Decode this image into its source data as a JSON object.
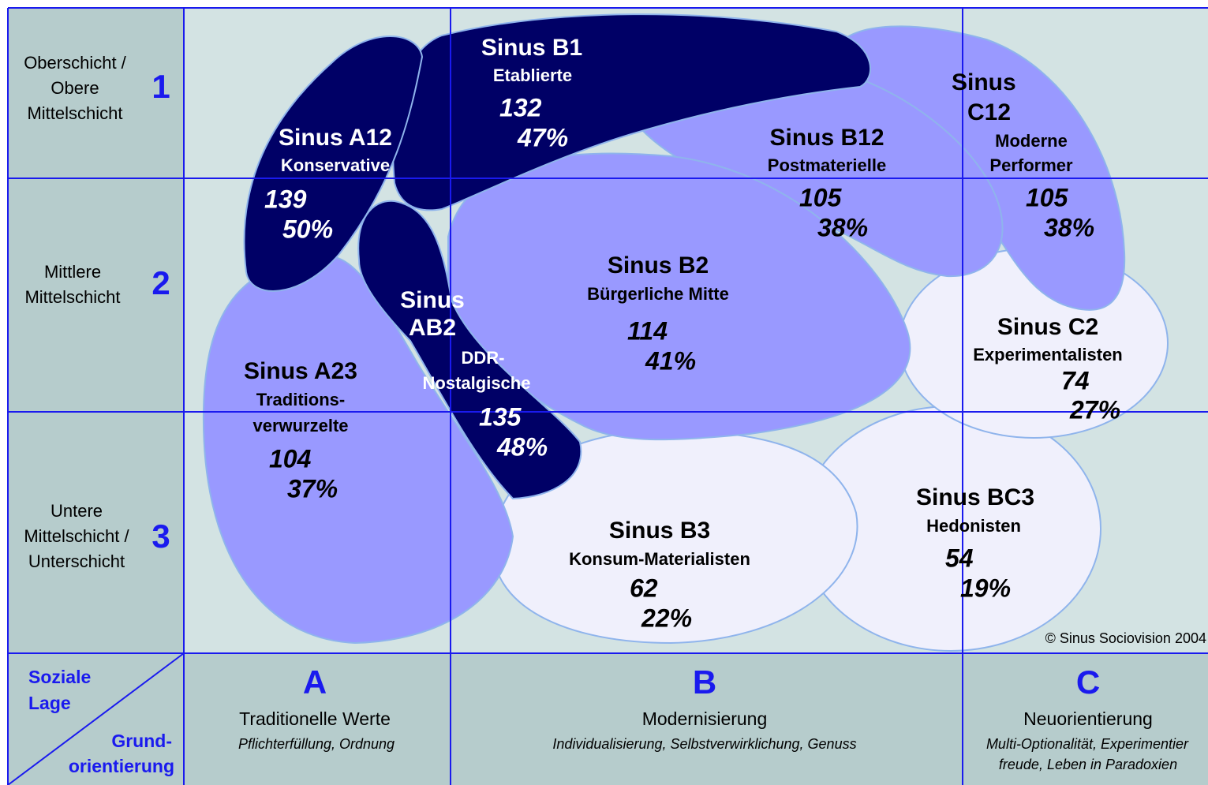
{
  "rows": [
    {
      "lines": [
        "Oberschicht /",
        "Obere",
        "Mittelschicht"
      ],
      "number": "1"
    },
    {
      "lines": [
        "Mittlere",
        "Mittelschicht"
      ],
      "number": "2"
    },
    {
      "lines": [
        "Untere",
        "Mittelschicht /",
        "Unterschicht"
      ],
      "number": "3"
    }
  ],
  "corner": {
    "top": [
      "Soziale",
      "Lage"
    ],
    "bottom": [
      "Grund-",
      "orientierung"
    ]
  },
  "columns": [
    {
      "letter": "A",
      "title": "Traditionelle Werte",
      "subtitle": [
        "Pflichterfüllung, Ordnung"
      ]
    },
    {
      "letter": "B",
      "title": "Modernisierung",
      "subtitle": [
        "Individualisierung, Selbstverwirklichung, Genuss"
      ]
    },
    {
      "letter": "C",
      "title": "Neuorientierung",
      "subtitle": [
        "Multi-Optionalität, Experimentier",
        "freude, Leben in Paradoxien"
      ]
    }
  ],
  "milieus": [
    {
      "name": [
        "Sinus A12"
      ],
      "desc": [
        "Konservative"
      ],
      "index": "139",
      "share": "50%"
    },
    {
      "name": [
        "Sinus B1"
      ],
      "desc": [
        "Etablierte"
      ],
      "index": "132",
      "share": "47%"
    },
    {
      "name": [
        "Sinus B12"
      ],
      "desc": [
        "Postmaterielle"
      ],
      "index": "105",
      "share": "38%"
    },
    {
      "name": [
        "Sinus",
        "C12"
      ],
      "desc": [
        "Moderne",
        "Performer"
      ],
      "index": "105",
      "share": "38%"
    },
    {
      "name": [
        "Sinus B2"
      ],
      "desc": [
        "Bürgerliche Mitte"
      ],
      "index": "114",
      "share": "41%"
    },
    {
      "name": [
        "Sinus",
        "AB2"
      ],
      "desc": [
        "DDR-",
        "Nostalgische"
      ],
      "index": "135",
      "share": "48%"
    },
    {
      "name": [
        "Sinus A23"
      ],
      "desc": [
        "Traditions-",
        "verwurzelte"
      ],
      "index": "104",
      "share": "37%"
    },
    {
      "name": [
        "Sinus C2"
      ],
      "desc": [
        "Experimentalisten"
      ],
      "index": "74",
      "share": "27%"
    },
    {
      "name": [
        "Sinus B3"
      ],
      "desc": [
        "Konsum-Materialisten"
      ],
      "index": "62",
      "share": "22%"
    },
    {
      "name": [
        "Sinus BC3"
      ],
      "desc": [
        "Hedonisten"
      ],
      "index": "54",
      "share": "19%"
    }
  ],
  "copyright": "© Sinus Sociovision 2004"
}
